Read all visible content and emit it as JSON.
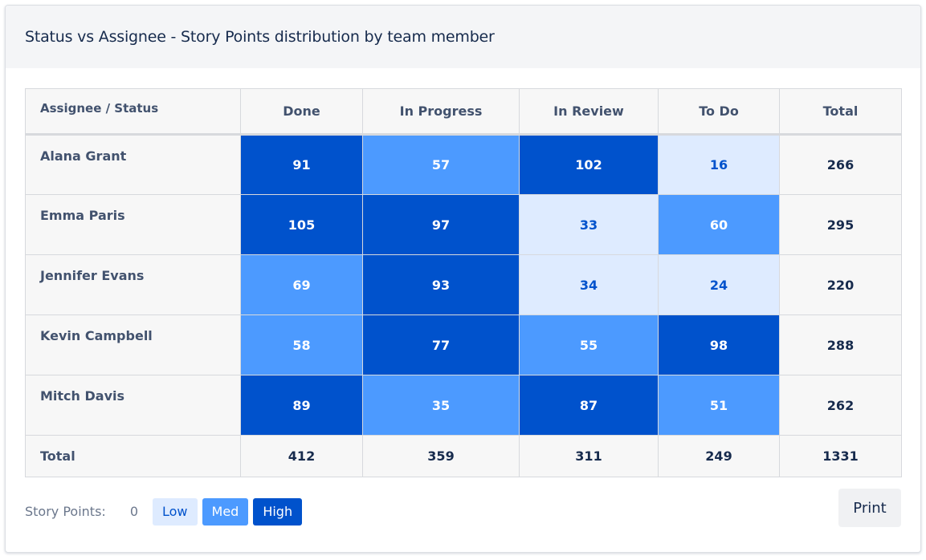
{
  "header": {
    "title": "Status vs Assignee - Story Points distribution by team member"
  },
  "table": {
    "corner_label": "Assignee / Status",
    "columns": [
      "Done",
      "In Progress",
      "In Review",
      "To Do"
    ],
    "total_label": "Total",
    "rows": [
      {
        "name": "Alana Grant",
        "cells": [
          {
            "value": "91",
            "level": "high"
          },
          {
            "value": "57",
            "level": "med"
          },
          {
            "value": "102",
            "level": "high"
          },
          {
            "value": "16",
            "level": "low"
          }
        ],
        "total": "266"
      },
      {
        "name": "Emma Paris",
        "cells": [
          {
            "value": "105",
            "level": "high"
          },
          {
            "value": "97",
            "level": "high"
          },
          {
            "value": "33",
            "level": "low"
          },
          {
            "value": "60",
            "level": "med"
          }
        ],
        "total": "295"
      },
      {
        "name": "Jennifer Evans",
        "cells": [
          {
            "value": "69",
            "level": "med"
          },
          {
            "value": "93",
            "level": "high"
          },
          {
            "value": "34",
            "level": "low"
          },
          {
            "value": "24",
            "level": "low"
          }
        ],
        "total": "220"
      },
      {
        "name": "Kevin Campbell",
        "cells": [
          {
            "value": "58",
            "level": "med"
          },
          {
            "value": "77",
            "level": "high"
          },
          {
            "value": "55",
            "level": "med"
          },
          {
            "value": "98",
            "level": "high"
          }
        ],
        "total": "288"
      },
      {
        "name": "Mitch Davis",
        "cells": [
          {
            "value": "89",
            "level": "high"
          },
          {
            "value": "35",
            "level": "med"
          },
          {
            "value": "87",
            "level": "high"
          },
          {
            "value": "51",
            "level": "med"
          }
        ],
        "total": "262"
      }
    ],
    "footer": {
      "label": "Total",
      "values": [
        "412",
        "359",
        "311",
        "249"
      ],
      "grand_total": "1331"
    }
  },
  "legend": {
    "label": "Story Points:",
    "zero": "0",
    "low": "Low",
    "med": "Med",
    "high": "High"
  },
  "print_label": "Print",
  "colors": {
    "high": "#0052cc",
    "med": "#4c9aff",
    "low": "#deebff"
  }
}
